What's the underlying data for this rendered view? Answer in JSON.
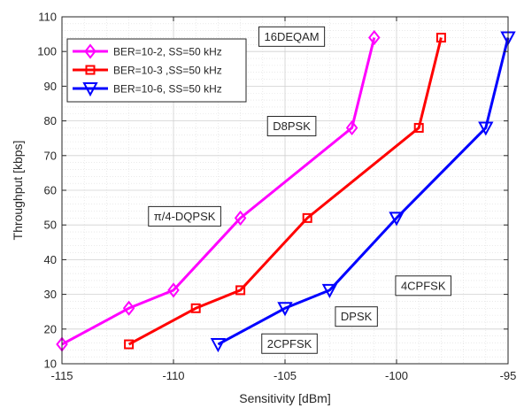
{
  "chart_data": {
    "type": "line",
    "xlabel": "Sensitivity [dBm]",
    "ylabel": "Throughput [kbps]",
    "xlim": [
      -115,
      -95
    ],
    "ylim": [
      10,
      110
    ],
    "xticks": [
      -115,
      -110,
      -105,
      -100,
      -95
    ],
    "yticks": [
      10,
      20,
      30,
      40,
      50,
      60,
      70,
      80,
      90,
      100,
      110
    ],
    "x_tick_labels": [
      "-115",
      "-110",
      "-105",
      "-100",
      "-95"
    ],
    "y_tick_labels": [
      "10",
      "20",
      "30",
      "40",
      "50",
      "60",
      "70",
      "80",
      "90",
      "100",
      "110"
    ],
    "grid": true,
    "minor_grid": true,
    "legend_position": "top-left",
    "series": [
      {
        "name": "BER=10-2, SS=50 kHz",
        "color": "#ff00ff",
        "marker": "diamond",
        "x": [
          -115,
          -112,
          -110,
          -107,
          -102,
          -101
        ],
        "y": [
          15.6,
          26,
          31.2,
          52,
          78,
          104
        ]
      },
      {
        "name": "BER=10-3 ,SS=50 kHz",
        "color": "#ff0000",
        "marker": "square",
        "x": [
          -112,
          -109,
          -107,
          -104,
          -99,
          -98
        ],
        "y": [
          15.6,
          26,
          31.2,
          52,
          78,
          104
        ]
      },
      {
        "name": "BER=10-6, SS=50 kHz",
        "color": "#0000ff",
        "marker": "triangle-down",
        "x": [
          -108,
          -105,
          -103,
          -100,
          -96,
          -95
        ],
        "y": [
          15.6,
          26,
          31.2,
          52,
          78,
          104
        ]
      }
    ],
    "annotations": [
      {
        "text": "16DEQAM",
        "x": -104.7,
        "y": 104.3
      },
      {
        "text": "D8PSK",
        "x": -104.7,
        "y": 78.5
      },
      {
        "text": "π/4-DQPSK",
        "x": -109.5,
        "y": 52.5
      },
      {
        "text": "4CPFSK",
        "x": -98.8,
        "y": 32.5
      },
      {
        "text": "DPSK",
        "x": -101.8,
        "y": 23.6
      },
      {
        "text": "2CPFSK",
        "x": -104.8,
        "y": 15.8
      }
    ]
  }
}
